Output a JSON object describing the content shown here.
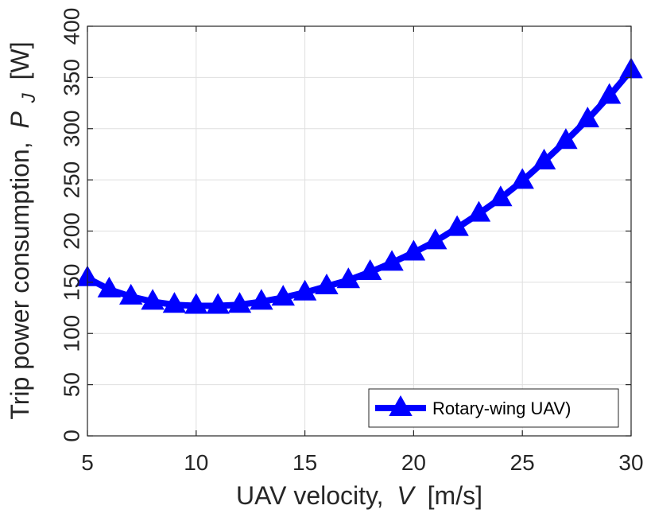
{
  "chart_data": {
    "type": "line",
    "title": "",
    "xlabel": "UAV velocity,",
    "xlabel_var": "V",
    "xlabel_unit": "[m/s]",
    "ylabel": "Trip power consumption,",
    "ylabel_var": "P",
    "ylabel_sub": "J",
    "ylabel_unit": "[W]",
    "xlim": [
      5,
      30
    ],
    "ylim": [
      0,
      400
    ],
    "xticks": [
      5,
      10,
      15,
      20,
      25,
      30
    ],
    "yticks": [
      0,
      50,
      100,
      150,
      200,
      250,
      300,
      350,
      400
    ],
    "grid": true,
    "legend_position": "bottom-right",
    "series": [
      {
        "name": "Rotary-wing UAV)",
        "color": "#0000ff",
        "marker": "triangle",
        "x": [
          5,
          6,
          7,
          8,
          9,
          10,
          11,
          12,
          13,
          14,
          15,
          16,
          17,
          18,
          19,
          20,
          21,
          22,
          23,
          24,
          25,
          26,
          27,
          28,
          29,
          30
        ],
        "y": [
          154,
          143,
          136,
          131,
          128,
          127,
          127,
          128,
          131,
          135,
          140,
          146,
          152,
          160,
          169,
          179,
          190,
          203,
          217,
          232,
          249,
          268,
          288,
          309,
          332,
          357
        ]
      }
    ]
  }
}
